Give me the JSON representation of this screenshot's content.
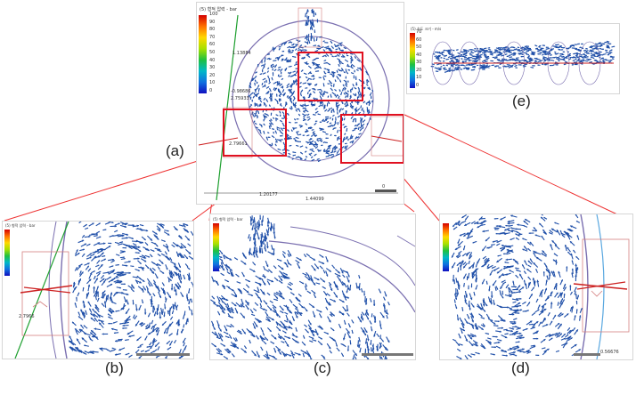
{
  "captions": {
    "a": "(a)",
    "b": "(b)",
    "c": "(c)",
    "d": "(d)",
    "e": "(e)"
  },
  "colorbar": {
    "title_a": "(5) 형적 압력 - bar",
    "ticks": [
      "100",
      "90",
      "80",
      "70",
      "60",
      "50",
      "40",
      "30",
      "20",
      "10",
      "0"
    ],
    "title_e": "(5) 속도 크기 - m/s",
    "ticks_e": [
      "70",
      "60",
      "50",
      "40",
      "30",
      "20",
      "10",
      "0"
    ],
    "title_small": "(5) 형적 압력 - bar"
  },
  "annotations": {
    "a1": "1.13884",
    "a2": "-0.98686",
    "a3": "2.75933",
    "a4": "2.79661",
    "a5": "1.20177",
    "a6": "1.44099",
    "a_scale": "0",
    "b1": "2.7966",
    "d_scale": "0.56676"
  },
  "colors": {
    "vector": "#1f4fa8",
    "highlight": "#e01020",
    "callout": "#ee3333",
    "circle": "#7a6fb0",
    "bg_panel": "#ffffff"
  }
}
